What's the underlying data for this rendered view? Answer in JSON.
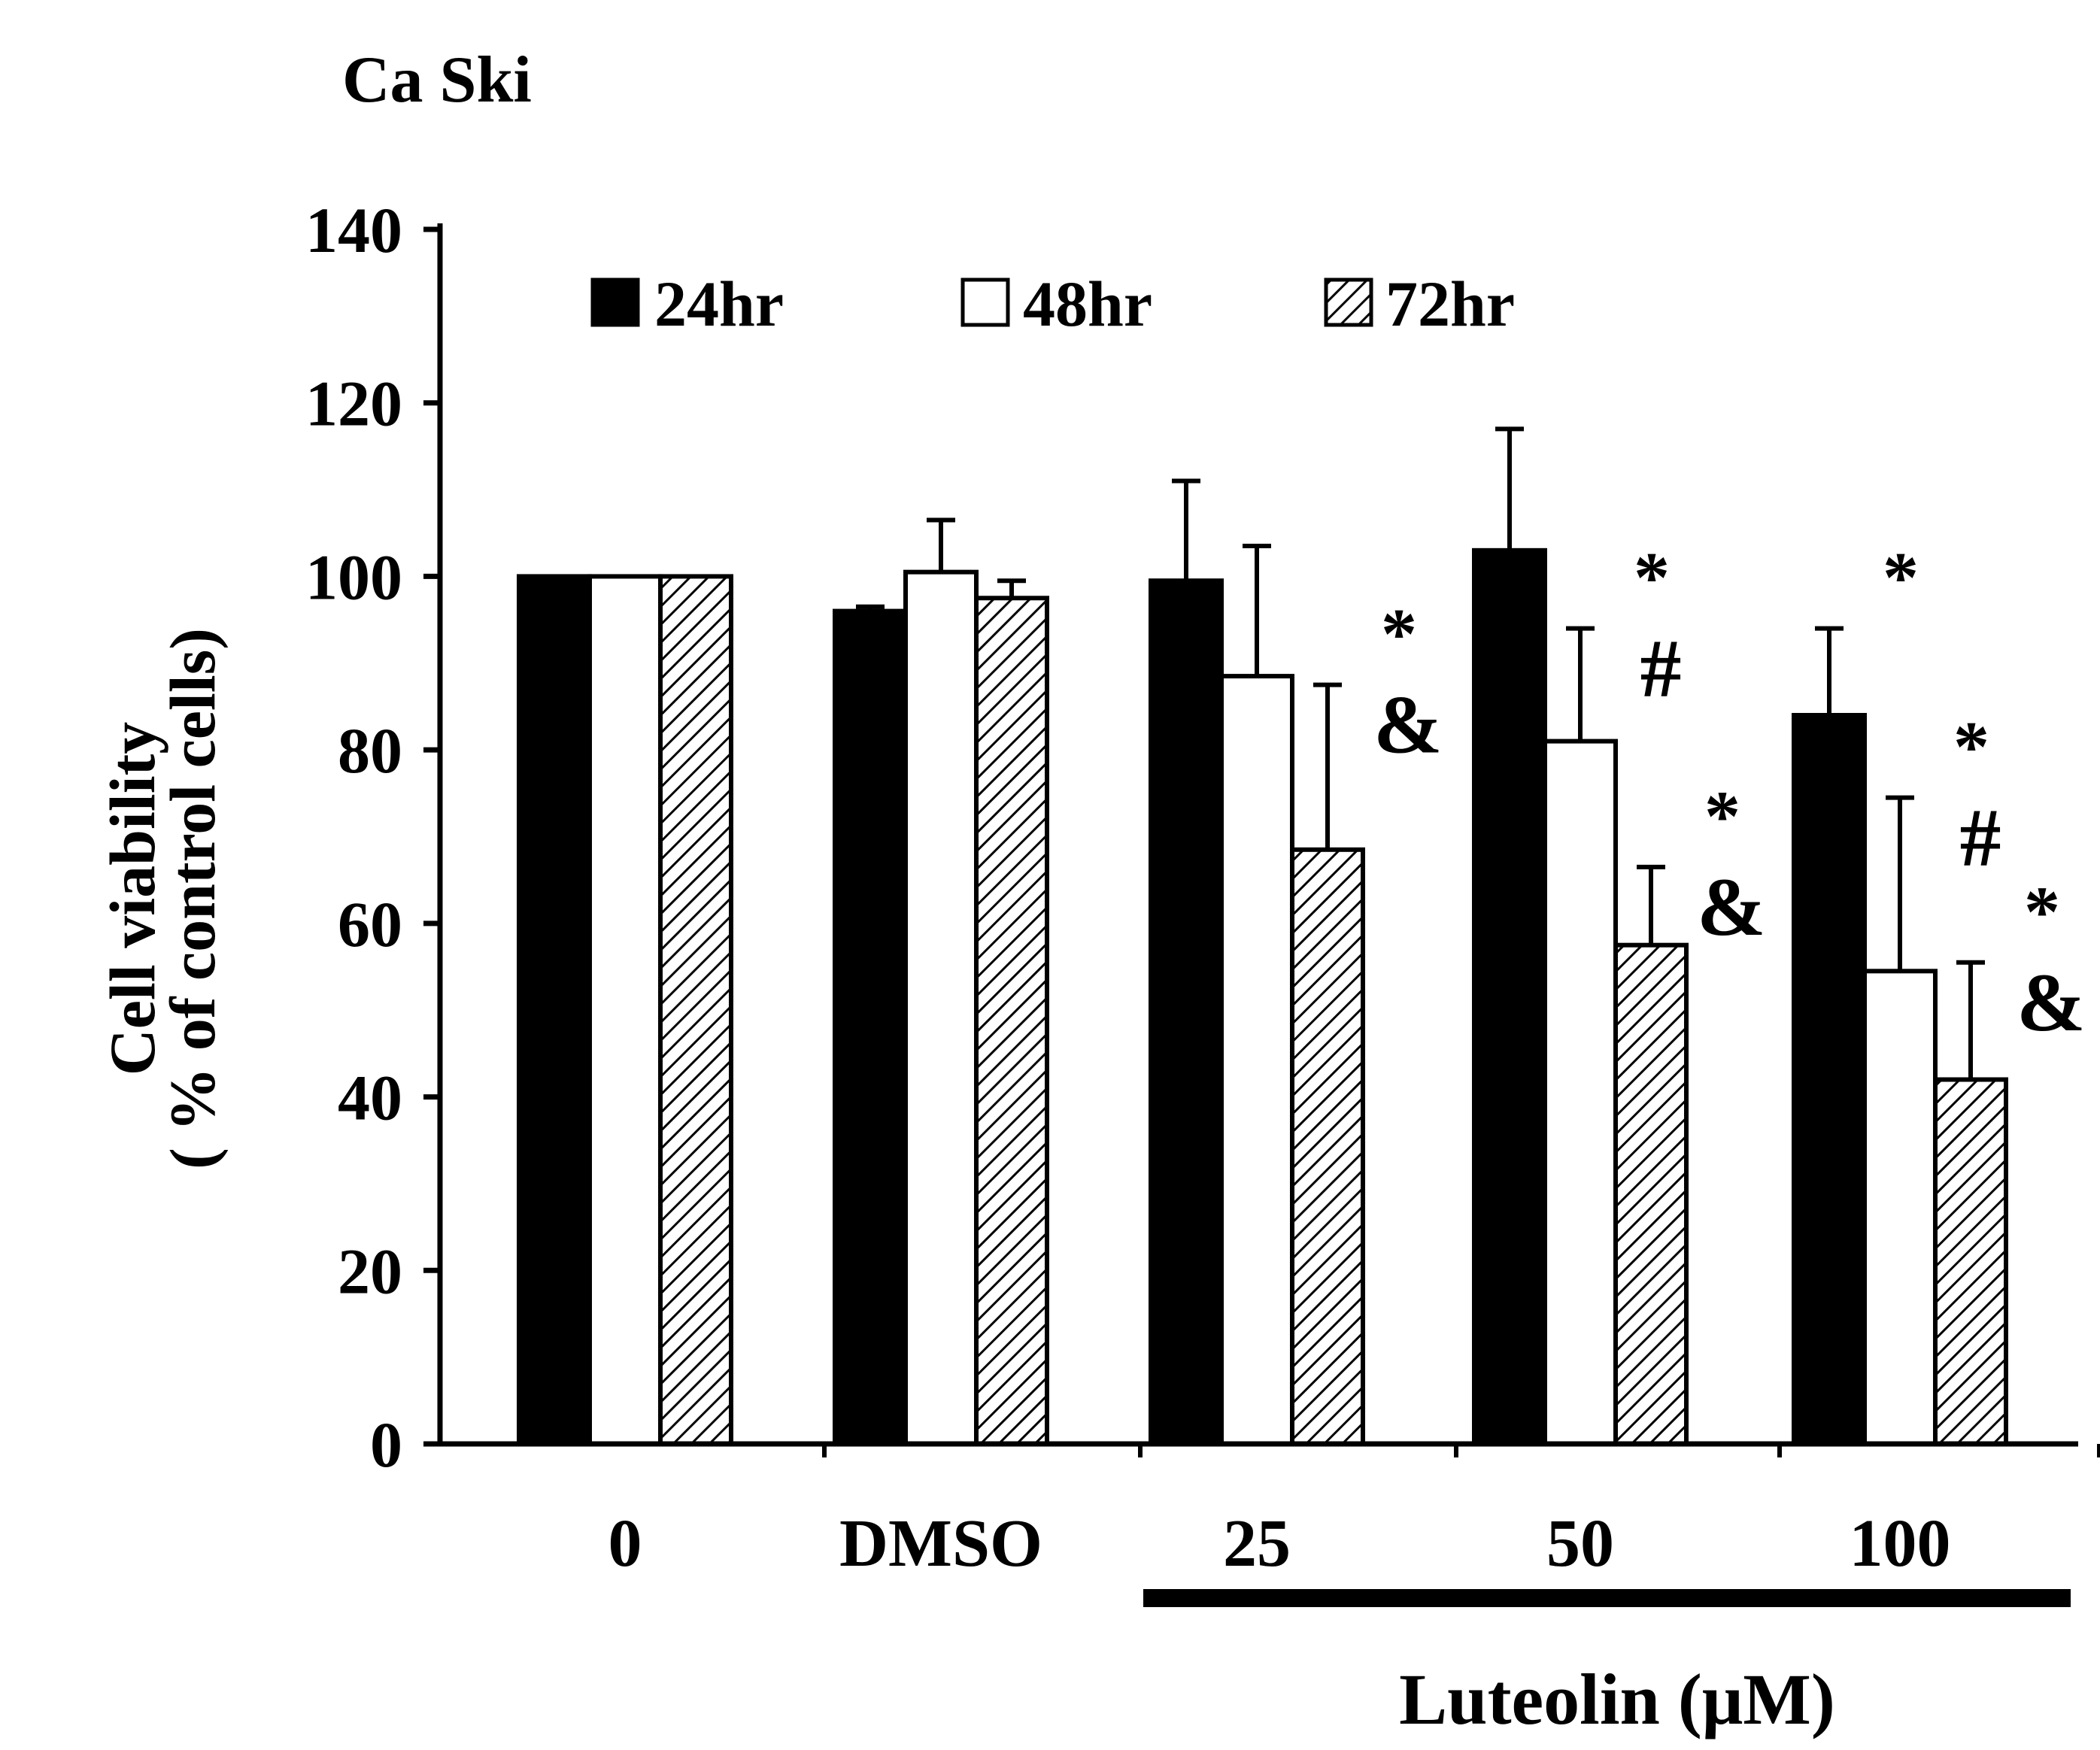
{
  "chart_data": {
    "type": "bar",
    "title": "Ca Ski",
    "ylabel_line1": "Cell viability",
    "ylabel_line2": "( % of control cells)",
    "xlabel": "Luteolin (μM)",
    "ylim": [
      0,
      140
    ],
    "yticks": [
      0,
      20,
      40,
      60,
      80,
      100,
      120,
      140
    ],
    "ytick_labels": [
      "0",
      "20",
      "40",
      "60",
      "80",
      "100",
      "120",
      "140"
    ],
    "categories": [
      "0",
      "DMSO",
      "25",
      "50",
      "100"
    ],
    "legend_position": "top-left",
    "series": [
      {
        "name": "24hr",
        "fill": "solid",
        "color": "#000000",
        "values": [
          100,
          96,
          99.5,
          103,
          84
        ],
        "errors": [
          0,
          0.5,
          11.5,
          14,
          10
        ],
        "marks": [
          "",
          "",
          "",
          "",
          "*"
        ]
      },
      {
        "name": "48hr",
        "fill": "open",
        "color": "#ffffff",
        "values": [
          100,
          100.5,
          88.5,
          81,
          54.5
        ],
        "errors": [
          0,
          6,
          15,
          13,
          20
        ],
        "marks": [
          "",
          "",
          "",
          "*\n#",
          "*\n#"
        ]
      },
      {
        "name": "72hr",
        "fill": "hatched",
        "color": "#ffffff",
        "values": [
          100,
          97.5,
          68.5,
          57.5,
          42
        ],
        "errors": [
          0,
          2,
          19,
          9,
          13.5
        ],
        "marks": [
          "",
          "",
          "*\n&",
          "*\n&",
          "*\n&"
        ]
      }
    ]
  }
}
